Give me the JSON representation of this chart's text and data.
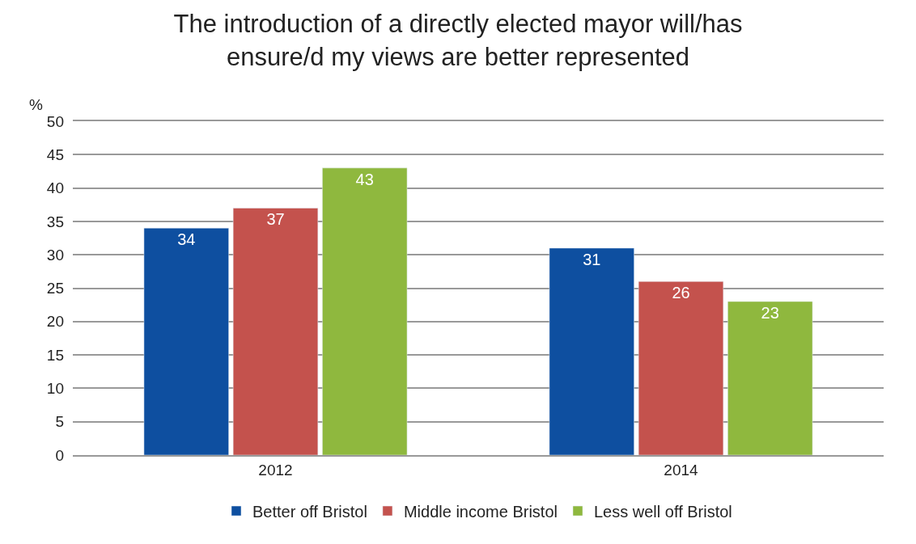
{
  "chart_data": {
    "type": "bar",
    "title": "The introduction of a directly elected mayor will/has ensure/d my views are better represented",
    "ylabel": "%",
    "categories": [
      "2012",
      "2014"
    ],
    "series": [
      {
        "name": "Better off Bristol",
        "color": "#0e4fa0",
        "values": [
          34,
          31
        ]
      },
      {
        "name": "Middle income Bristol",
        "color": "#c4524d",
        "values": [
          37,
          26
        ]
      },
      {
        "name": "Less well off Bristol",
        "color": "#8fb83e",
        "values": [
          43,
          23
        ]
      }
    ],
    "ylim": [
      0,
      50
    ],
    "yticks": [
      0,
      5,
      10,
      15,
      20,
      25,
      30,
      35,
      40,
      45,
      50
    ],
    "grid": "y",
    "legend": "bottom",
    "data_labels": true
  }
}
